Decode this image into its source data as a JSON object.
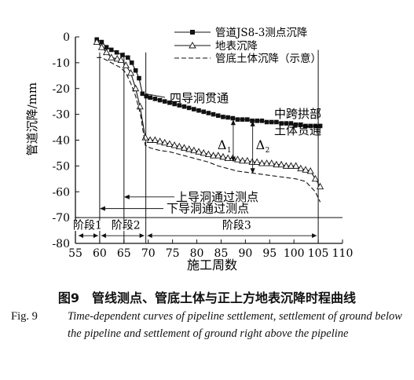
{
  "chart_data": {
    "type": "line",
    "ylabel": "管道沉降/mm",
    "xlabel": "施工周数",
    "xlim": [
      55,
      110
    ],
    "ylim": [
      -80,
      0
    ],
    "x_ticks": [
      "55",
      "60",
      "65",
      "70",
      "75",
      "80",
      "85",
      "90",
      "95",
      "100",
      "105",
      "110"
    ],
    "y_ticks": [
      "0",
      "-10",
      "-20",
      "-30",
      "-40",
      "-50",
      "-60",
      "-70",
      "-80"
    ],
    "legend_position": "top-right",
    "grid": false,
    "series": [
      {
        "name": "管道JS8-3测点沉降",
        "marker": "square",
        "x": [
          59.4,
          60.4,
          61.4,
          62.4,
          63.5,
          64.7,
          65.8,
          66.6,
          67.4,
          68.1,
          68.8,
          69.6,
          70.4,
          71.4,
          72.4,
          73.4,
          74.4,
          75.4,
          76.4,
          77.4,
          78.4,
          79.4,
          80.4,
          81.4,
          82.4,
          83.4,
          84.4,
          85.4,
          86.4,
          87.4,
          88.4,
          89.4,
          90.4,
          91.4,
          92.4,
          93.4,
          94.4,
          95.4,
          96.4,
          97.4,
          98.4,
          99.4,
          100.4,
          101.4,
          102.4,
          103.4,
          104.4,
          105.4
        ],
        "y": [
          -1,
          -2,
          -4,
          -5,
          -6,
          -7,
          -8,
          -10,
          -13,
          -16,
          -22,
          -23,
          -23.5,
          -24,
          -24.5,
          -25,
          -25.5,
          -26,
          -26.5,
          -27,
          -27.5,
          -28,
          -28.5,
          -29,
          -29.5,
          -30,
          -30.5,
          -31,
          -31.2,
          -31.5,
          -32,
          -32,
          -32,
          -32.5,
          -32.5,
          -32.5,
          -33,
          -33,
          -33,
          -33.5,
          -33.5,
          -33.5,
          -34,
          -34,
          -34.5,
          -34.5,
          -34.5,
          -34.5
        ]
      },
      {
        "name": "地表沉降",
        "marker": "triangle",
        "x": [
          59.4,
          60.4,
          61.4,
          62.4,
          63.6,
          64.4,
          65.4,
          66.4,
          67.4,
          68.3,
          69.4,
          70.4,
          71.4,
          72.4,
          73.4,
          74.4,
          75.4,
          76.4,
          77.4,
          78.4,
          79.4,
          80.4,
          81.4,
          82.4,
          83.4,
          84.4,
          85.4,
          86.4,
          87.4,
          88.4,
          89.4,
          90.4,
          91.4,
          92.4,
          93.4,
          94.4,
          95.4,
          96.4,
          97.4,
          98.4,
          99.4,
          100.4,
          101.4,
          102.4,
          103.4,
          104.4,
          105.4
        ],
        "y": [
          -2,
          -4,
          -6,
          -8,
          -8.5,
          -9,
          -11,
          -14,
          -20,
          -27,
          -39,
          -40,
          -40,
          -40.5,
          -41,
          -41.5,
          -42,
          -42.5,
          -43,
          -43.5,
          -44,
          -44.5,
          -45,
          -45.5,
          -46,
          -46,
          -46.5,
          -47,
          -47,
          -47.5,
          -48,
          -48,
          -48.5,
          -48.5,
          -49,
          -49,
          -49,
          -49.5,
          -49.5,
          -50,
          -50,
          -50,
          -51,
          -51.5,
          -52,
          -55,
          -58
        ]
      },
      {
        "name": "管底土体沉降（示意）",
        "marker": "none",
        "dashed": true,
        "x": [
          59.4,
          60.4,
          61.4,
          62.4,
          63.4,
          64.4,
          65.4,
          66.4,
          67.4,
          68.4,
          69.4,
          70.4,
          72.4,
          74.4,
          76.4,
          78.4,
          80.4,
          82.4,
          84.4,
          86.4,
          88.4,
          90.4,
          92.4,
          94.4,
          96.4,
          98.4,
          100.4,
          101.4,
          102.4,
          103.4,
          104.4,
          105.4
        ],
        "y": [
          -8,
          -8,
          -9,
          -10,
          -11,
          -12,
          -14,
          -18,
          -23,
          -30,
          -42,
          -43,
          -44,
          -44.5,
          -45.5,
          -46.5,
          -47.5,
          -48.5,
          -50,
          -51,
          -52,
          -52.5,
          -53,
          -53.5,
          -54,
          -54.5,
          -55,
          -55.5,
          -56,
          -58,
          -60,
          -64
        ]
      }
    ],
    "annotations": [
      "四导洞贯通",
      "中跨拱部",
      "土体贯通",
      "Δ",
      "1",
      "Δ",
      "2",
      "上导洞通过测点",
      "下导洞通过测点"
    ],
    "stages": [
      "阶段1",
      "阶段2",
      "阶段3"
    ],
    "milestones": [
      60,
      65,
      69.5,
      105
    ],
    "delta1": {
      "x": 87.5,
      "y_top": -32,
      "y_bottom": -48.5
    },
    "delta2": {
      "x": 91.5,
      "y_top": -32.5,
      "y_bottom": -53
    }
  },
  "caption": {
    "chinese": "图9　管线测点、管底土体与正上方地表沉降时程曲线",
    "fig_label": "Fig. 9",
    "english": "Time-dependent curves of pipeline settlement, settlement of ground below the pipeline and settlement of ground right above the pipeline"
  }
}
